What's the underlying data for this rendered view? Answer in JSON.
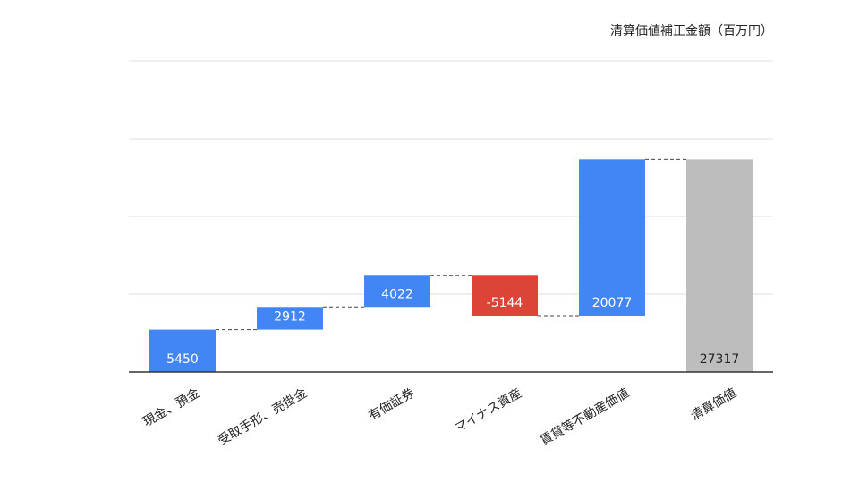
{
  "chart_data": {
    "type": "waterfall",
    "unit_label": "清算価値補正金額（百万円）",
    "categories": [
      "現金、預金",
      "受取手形、売掛金",
      "有価証券",
      "マイナス資産",
      "賃貸等不動産価値",
      "清算価値"
    ],
    "values": [
      5450,
      2912,
      4022,
      -5144,
      20077,
      27317
    ],
    "value_labels": [
      "5450",
      "2912",
      "4022",
      "-5144",
      "20077",
      "27317"
    ],
    "kinds": [
      "increase",
      "increase",
      "increase",
      "decrease",
      "increase",
      "total"
    ],
    "ylim": [
      0,
      40000
    ],
    "grid": true,
    "colors": {
      "increase": "#4285f4",
      "decrease": "#db4437",
      "total": "#bdbdbd",
      "grid": "#dddddd",
      "axis": "#333333",
      "connector": "#444444"
    }
  }
}
